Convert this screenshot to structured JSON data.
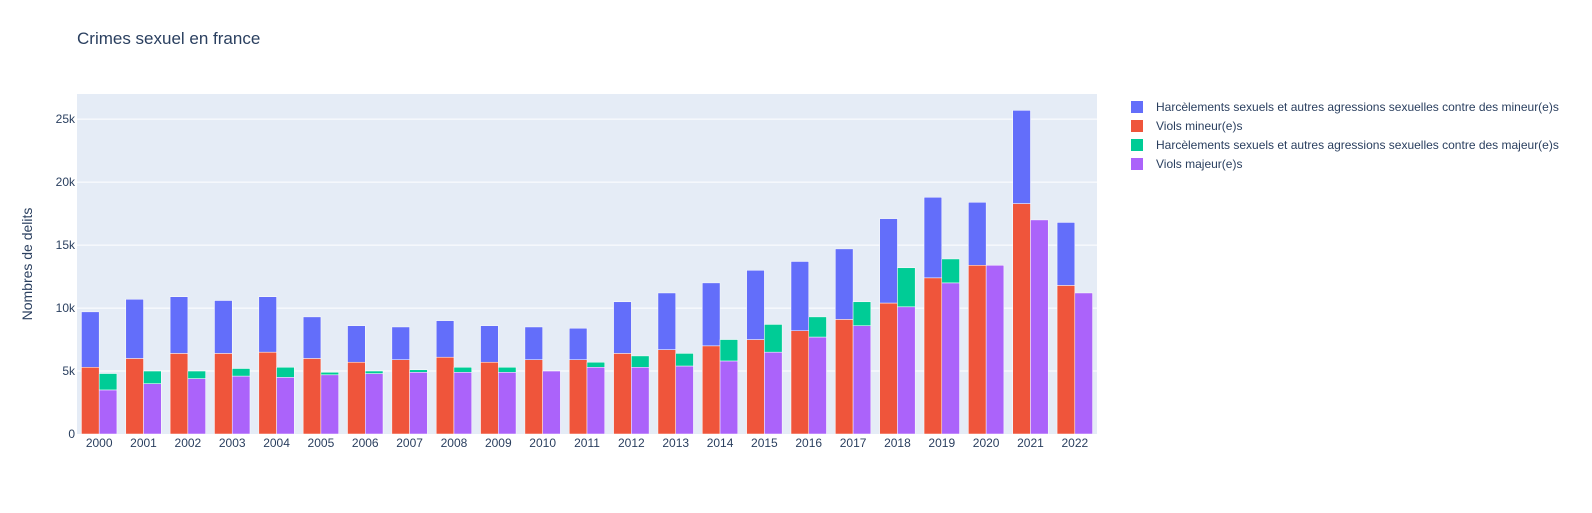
{
  "chart_data": {
    "type": "bar",
    "title": "Crimes sexuel en france",
    "xlabel": "",
    "ylabel": "Nombres de delits",
    "ylim": [
      0,
      27000
    ],
    "yticks": [
      {
        "value": 0,
        "label": "0"
      },
      {
        "value": 5000,
        "label": "5k"
      },
      {
        "value": 10000,
        "label": "10k"
      },
      {
        "value": 15000,
        "label": "15k"
      },
      {
        "value": 20000,
        "label": "20k"
      },
      {
        "value": 25000,
        "label": "25k"
      }
    ],
    "categories": [
      "2000",
      "2001",
      "2002",
      "2003",
      "2004",
      "2005",
      "2006",
      "2007",
      "2008",
      "2009",
      "2010",
      "2011",
      "2012",
      "2013",
      "2014",
      "2015",
      "2016",
      "2017",
      "2018",
      "2019",
      "2020",
      "2021",
      "2022"
    ],
    "stacks": [
      {
        "name": "mineurs",
        "series": [
          {
            "name": "Viols mineur(e)s",
            "color": "#EF553B",
            "values": [
              5300,
              6000,
              6400,
              6400,
              6500,
              6000,
              5700,
              5900,
              6100,
              5700,
              5900,
              5900,
              6400,
              6700,
              7000,
              7500,
              8200,
              9100,
              10400,
              12400,
              13400,
              18300,
              11800
            ]
          },
          {
            "name": "Harcèlements sexuels et autres agressions sexuelles contre des mineur(e)s",
            "color": "#636EFA",
            "values": [
              4400,
              4700,
              4500,
              4200,
              4400,
              3300,
              2900,
              2600,
              2900,
              2900,
              2600,
              2500,
              4100,
              4500,
              5000,
              5500,
              5500,
              5600,
              6700,
              6400,
              5000,
              7400,
              5000
            ]
          }
        ]
      },
      {
        "name": "majeurs",
        "series": [
          {
            "name": "Viols majeur(e)s",
            "color": "#AB63FA",
            "values": [
              3500,
              4000,
              4400,
              4600,
              4500,
              4700,
              4800,
              4900,
              4900,
              4900,
              5000,
              5300,
              5300,
              5400,
              5800,
              6500,
              7700,
              8600,
              10100,
              12000,
              13400,
              17000,
              11200
            ]
          },
          {
            "name": "Harcèlements sexuels et autres agressions sexuelles contre des majeur(e)s",
            "color": "#00CC96",
            "values": [
              1300,
              1000,
              600,
              600,
              800,
              200,
              200,
              200,
              400,
              400,
              0,
              400,
              900,
              1000,
              1700,
              2200,
              1600,
              1900,
              3100,
              1900,
              0,
              0,
              0
            ]
          }
        ]
      }
    ],
    "legend": {
      "placement": "top-right",
      "entries": [
        {
          "label": "Harcèlements sexuels et autres agressions sexuelles contre des mineur(e)s",
          "color": "#636EFA"
        },
        {
          "label": "Viols mineur(e)s",
          "color": "#EF553B"
        },
        {
          "label": "Harcèlements sexuels et autres agressions sexuelles contre des majeur(e)s",
          "color": "#00CC96"
        },
        {
          "label": "Viols majeur(e)s",
          "color": "#AB63FA"
        }
      ]
    },
    "grid": true,
    "plot_background": "#E5ECF6"
  }
}
